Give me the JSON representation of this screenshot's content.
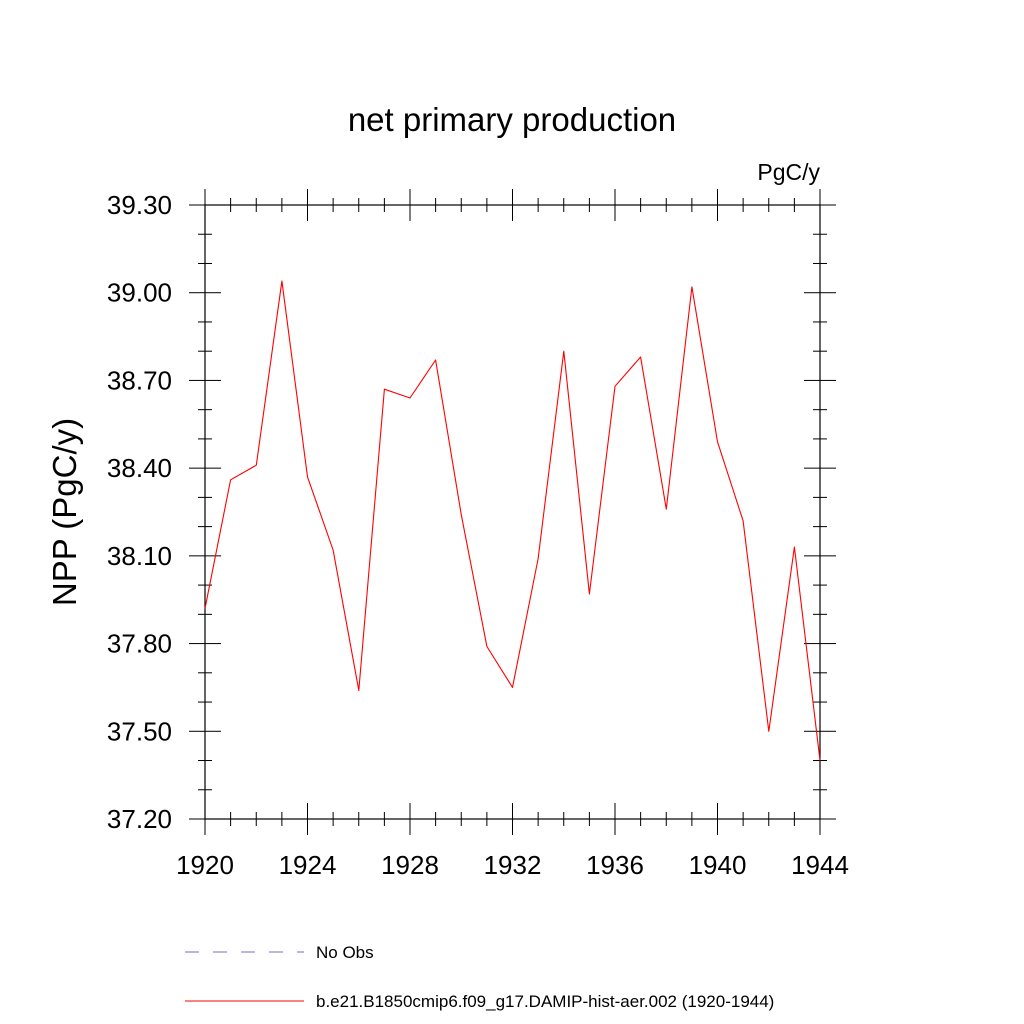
{
  "chart_data": {
    "type": "line",
    "title": "net primary production",
    "units_label": "PgC/y",
    "xlabel": "",
    "ylabel": "NPP  (PgC/y)",
    "xlim": [
      1920,
      1944
    ],
    "ylim": [
      37.2,
      39.3
    ],
    "x_ticks": [
      "1920",
      "1924",
      "1928",
      "1932",
      "1936",
      "1940",
      "1944"
    ],
    "y_ticks": [
      "37.20",
      "37.50",
      "37.80",
      "38.10",
      "38.40",
      "38.70",
      "39.00",
      "39.30"
    ],
    "grid": false,
    "legend_position": "bottom",
    "series": [
      {
        "name": "No Obs",
        "color": "#7b68c8",
        "style": "dashed",
        "x": [],
        "values": []
      },
      {
        "name": "b.e21.B1850cmip6.f09_g17.DAMIP-hist-aer.002 (1920-1944)",
        "color": "#ff0000",
        "style": "solid",
        "x": [
          1920,
          1921,
          1922,
          1923,
          1924,
          1925,
          1926,
          1927,
          1928,
          1929,
          1930,
          1931,
          1932,
          1933,
          1934,
          1935,
          1936,
          1937,
          1938,
          1939,
          1940,
          1941,
          1942,
          1943,
          1944
        ],
        "values": [
          37.92,
          38.36,
          38.41,
          39.04,
          38.37,
          38.12,
          37.64,
          38.67,
          38.64,
          38.77,
          38.24,
          37.79,
          37.65,
          38.09,
          38.8,
          37.97,
          38.68,
          38.78,
          38.26,
          39.02,
          38.49,
          38.22,
          37.5,
          38.13,
          37.4
        ]
      }
    ]
  }
}
